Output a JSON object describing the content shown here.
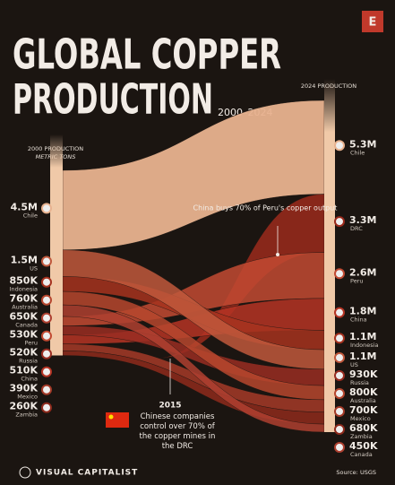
{
  "chart_data": {
    "type": "sankey",
    "title_lines": [
      "GLOBAL COPPER",
      "PRODUCTION"
    ],
    "subtitle": "2000–2024",
    "left_title": "2000 PRODUCTION",
    "left_unit": "METRIC TONS",
    "right_title": "2024 PRODUCTION",
    "annotations": [
      "China buys 70% of Peru's copper output",
      "2015",
      "Chinese companies control over 70% of the copper mines in the DRC"
    ],
    "source": "Source: USGS",
    "brand": "VISUAL CAPITALIST",
    "logo": "E",
    "series": [
      {
        "name": "Chile",
        "color": "#e8b28f",
        "values": [
          4500000,
          5300000
        ],
        "value_labels": [
          "4.5M",
          "5.3M"
        ]
      },
      {
        "name": "DRC",
        "color": "#9b2a1c",
        "values": [
          null,
          3300000
        ],
        "value_labels": [
          null,
          "3.3M"
        ]
      },
      {
        "name": "Peru",
        "color": "#c24a32",
        "values": [
          530000,
          2600000
        ],
        "value_labels": [
          "530K",
          "2.6M"
        ]
      },
      {
        "name": "China",
        "color": "#b53424",
        "values": [
          510000,
          1800000
        ],
        "value_labels": [
          "510K",
          "1.8M"
        ]
      },
      {
        "name": "Indonesia",
        "color": "#a6321f",
        "values": [
          850000,
          1100000
        ],
        "value_labels": [
          "850K",
          "1.1M"
        ]
      },
      {
        "name": "US",
        "color": "#c0583c",
        "values": [
          1500000,
          1100000
        ],
        "value_labels": [
          "1.5M",
          "1.1M"
        ]
      },
      {
        "name": "Russia",
        "color": "#992d22",
        "values": [
          520000,
          930000
        ],
        "value_labels": [
          "520K",
          "930K"
        ]
      },
      {
        "name": "Australia",
        "color": "#b6462e",
        "values": [
          760000,
          800000
        ],
        "value_labels": [
          "760K",
          "800K"
        ]
      },
      {
        "name": "Mexico",
        "color": "#a43a28",
        "values": [
          390000,
          700000
        ],
        "value_labels": [
          "390K",
          "700K"
        ]
      },
      {
        "name": "Zambia",
        "color": "#8e2a1c",
        "values": [
          260000,
          680000
        ],
        "value_labels": [
          "260K",
          "680K"
        ]
      },
      {
        "name": "Canada",
        "color": "#ae4030",
        "values": [
          650000,
          450000
        ],
        "value_labels": [
          "650K",
          "450K"
        ]
      }
    ]
  }
}
